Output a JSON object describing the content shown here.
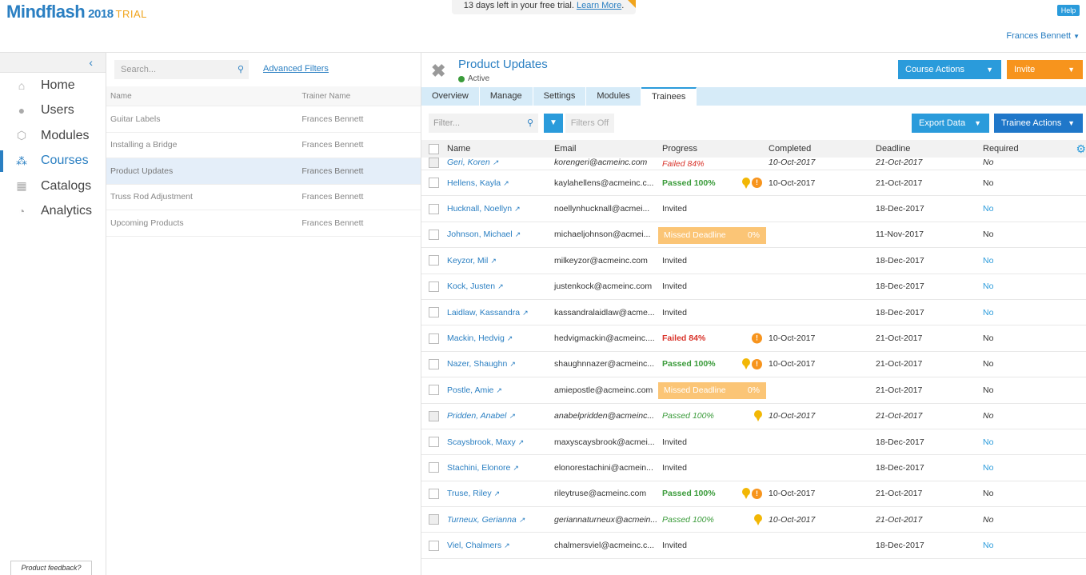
{
  "header": {
    "logo": "Mindflash",
    "year": "2018",
    "trial": "TRIAL",
    "trial_banner_text": "13 days left in your free trial.",
    "learn_more": "Learn More",
    "help": "Help",
    "user": "Frances Bennett"
  },
  "nav": {
    "collapse": "‹",
    "items": [
      {
        "label": "Home",
        "icon": "home-icon",
        "glyph": "⌂"
      },
      {
        "label": "Users",
        "icon": "users-icon",
        "glyph": "●"
      },
      {
        "label": "Modules",
        "icon": "modules-icon",
        "glyph": "⬡"
      },
      {
        "label": "Courses",
        "icon": "courses-icon",
        "glyph": "⁂"
      },
      {
        "label": "Catalogs",
        "icon": "catalogs-icon",
        "glyph": "▦"
      },
      {
        "label": "Analytics",
        "icon": "analytics-icon",
        "glyph": "◔"
      }
    ],
    "feedback": "Product feedback?"
  },
  "course_list": {
    "search_placeholder": "Search...",
    "advanced_filters": "Advanced Filters",
    "col_name": "Name",
    "col_trainer": "Trainer Name",
    "rows": [
      {
        "name": "Guitar Labels",
        "trainer": "Frances Bennett"
      },
      {
        "name": "Installing a Bridge",
        "trainer": "Frances Bennett"
      },
      {
        "name": "Product Updates",
        "trainer": "Frances Bennett"
      },
      {
        "name": "Truss Rod Adjustment",
        "trainer": "Frances Bennett"
      },
      {
        "name": "Upcoming Products",
        "trainer": "Frances Bennett"
      }
    ]
  },
  "course": {
    "title": "Product Updates",
    "status": "Active",
    "course_actions": "Course Actions",
    "invite": "Invite",
    "tabs": [
      "Overview",
      "Manage",
      "Settings",
      "Modules",
      "Trainees"
    ],
    "filter_placeholder": "Filter...",
    "filters_off": "Filters Off",
    "export_data": "Export Data",
    "trainee_actions": "Trainee Actions"
  },
  "grid": {
    "columns": [
      "Name",
      "Email",
      "Progress",
      "Completed",
      "Deadline",
      "Required"
    ],
    "rows": [
      {
        "name": "Geri, Koren",
        "email": "korengeri@acmeinc.com",
        "progress": "Failed 84%",
        "status": "failed",
        "completed": "10-Oct-2017",
        "deadline": "21-Oct-2017",
        "required": "No",
        "italic": true,
        "partial": true,
        "award": false,
        "warn": false
      },
      {
        "name": "Hellens, Kayla",
        "email": "kaylahellens@acmeinc.c...",
        "progress": "Passed 100%",
        "status": "passed",
        "completed": "10-Oct-2017",
        "deadline": "21-Oct-2017",
        "required": "No",
        "italic": false,
        "award": true,
        "warn": true
      },
      {
        "name": "Hucknall, Noellyn",
        "email": "noellynhucknall@acmei...",
        "progress": "Invited",
        "status": "invited",
        "completed": "",
        "deadline": "18-Dec-2017",
        "required": "No",
        "italic": false,
        "award": false,
        "warn": false
      },
      {
        "name": "Johnson, Michael",
        "email": "michaeljohnson@acmei...",
        "progress": "Missed Deadline",
        "pct": "0%",
        "status": "missed",
        "completed": "",
        "deadline": "11-Nov-2017",
        "required": "No",
        "italic": false,
        "award": false,
        "warn": false
      },
      {
        "name": "Keyzor, Mil",
        "email": "milkeyzor@acmeinc.com",
        "progress": "Invited",
        "status": "invited",
        "completed": "",
        "deadline": "18-Dec-2017",
        "required": "No",
        "italic": false,
        "award": false,
        "warn": false
      },
      {
        "name": "Kock, Justen",
        "email": "justenkock@acmeinc.com",
        "progress": "Invited",
        "status": "invited",
        "completed": "",
        "deadline": "18-Dec-2017",
        "required": "No",
        "italic": false,
        "award": false,
        "warn": false
      },
      {
        "name": "Laidlaw, Kassandra",
        "email": "kassandralaidlaw@acme...",
        "progress": "Invited",
        "status": "invited",
        "completed": "",
        "deadline": "18-Dec-2017",
        "required": "No",
        "italic": false,
        "award": false,
        "warn": false
      },
      {
        "name": "Mackin, Hedvig",
        "email": "hedvigmackin@acmeinc....",
        "progress": "Failed 84%",
        "status": "failed",
        "completed": "10-Oct-2017",
        "deadline": "21-Oct-2017",
        "required": "No",
        "italic": false,
        "award": false,
        "warn": true
      },
      {
        "name": "Nazer, Shaughn",
        "email": "shaughnnazer@acmeinc...",
        "progress": "Passed 100%",
        "status": "passed",
        "completed": "10-Oct-2017",
        "deadline": "21-Oct-2017",
        "required": "No",
        "italic": false,
        "award": true,
        "warn": true
      },
      {
        "name": "Postle, Amie",
        "email": "amiepostle@acmeinc.com",
        "progress": "Missed Deadline",
        "pct": "0%",
        "status": "missed",
        "completed": "",
        "deadline": "21-Oct-2017",
        "required": "No",
        "italic": false,
        "award": false,
        "warn": false
      },
      {
        "name": "Pridden, Anabel",
        "email": "anabelpridden@acmeinc...",
        "progress": "Passed 100%",
        "status": "passed",
        "completed": "10-Oct-2017",
        "deadline": "21-Oct-2017",
        "required": "No",
        "italic": true,
        "award": true,
        "warn": false
      },
      {
        "name": "Scaysbrook, Maxy",
        "email": "maxyscaysbrook@acmei...",
        "progress": "Invited",
        "status": "invited",
        "completed": "",
        "deadline": "18-Dec-2017",
        "required": "No",
        "italic": false,
        "award": false,
        "warn": false
      },
      {
        "name": "Stachini, Elonore",
        "email": "elonorestachini@acmein...",
        "progress": "Invited",
        "status": "invited",
        "completed": "",
        "deadline": "18-Dec-2017",
        "required": "No",
        "italic": false,
        "award": false,
        "warn": false
      },
      {
        "name": "Truse, Riley",
        "email": "rileytruse@acmeinc.com",
        "progress": "Passed 100%",
        "status": "passed",
        "completed": "10-Oct-2017",
        "deadline": "21-Oct-2017",
        "required": "No",
        "italic": false,
        "award": true,
        "warn": true
      },
      {
        "name": "Turneux, Gerianna",
        "email": "geriannaturneux@acmein...",
        "progress": "Passed 100%",
        "status": "passed",
        "completed": "10-Oct-2017",
        "deadline": "21-Oct-2017",
        "required": "No",
        "italic": true,
        "award": true,
        "warn": false
      },
      {
        "name": "Viel, Chalmers",
        "email": "chalmersviel@acmeinc.c...",
        "progress": "Invited",
        "status": "invited",
        "completed": "",
        "deadline": "18-Dec-2017",
        "required": "No",
        "italic": false,
        "award": false,
        "warn": false
      }
    ]
  },
  "colors": {
    "accent": "#2a7fc2",
    "invite": "#f7941d",
    "missed": "#fbc576",
    "passed": "#3a9b3a",
    "failed": "#d9342b"
  }
}
